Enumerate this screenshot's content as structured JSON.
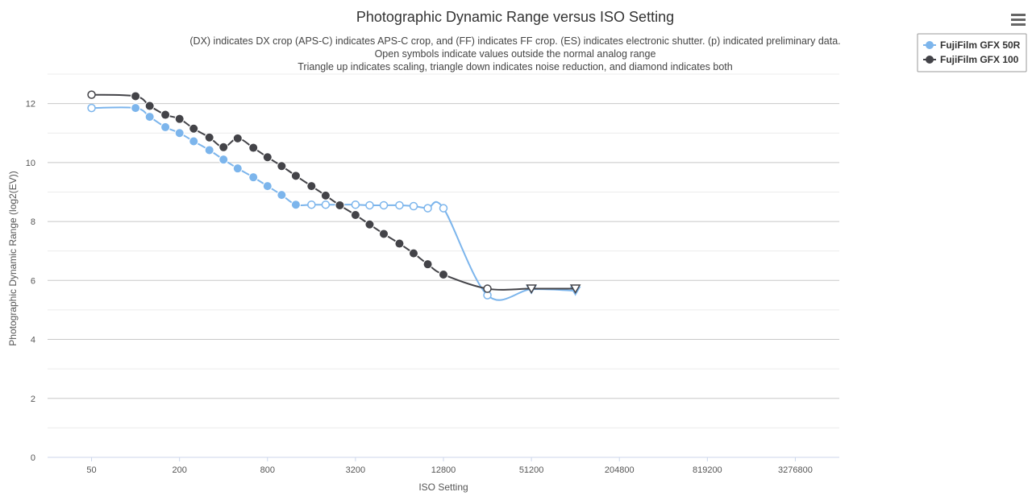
{
  "chart_data": {
    "type": "line",
    "title": "Photographic Dynamic Range versus ISO Setting",
    "subtitle": [
      "(DX) indicates DX crop (APS-C) indicates APS-C crop, and (FF) indicates FF crop. (ES) indicates electronic shutter. (p) indicated preliminary data.",
      "Open symbols indicate values outside the normal analog range",
      "Triangle up indicates scaling, triangle down indicates noise reduction, and diamond indicates both"
    ],
    "xlabel": "ISO Setting",
    "ylabel": "Photographic Dynamic Range (log2(EV))",
    "x_scale": "log2",
    "x_ticks": [
      50,
      200,
      800,
      3200,
      12800,
      51200,
      204800,
      819200,
      3276800
    ],
    "xlim": [
      25,
      6553600
    ],
    "y_ticks": [
      0,
      2,
      4,
      6,
      8,
      10,
      12
    ],
    "ylim": [
      0,
      13
    ],
    "grid": true,
    "legend_position": "top-right",
    "series": [
      {
        "name": "FujiFilm GFX 50R",
        "color": "#7cb5ec",
        "points": [
          {
            "x": 50,
            "y": 11.85,
            "marker": "open-circle"
          },
          {
            "x": 100,
            "y": 11.85,
            "marker": "circle"
          },
          {
            "x": 125,
            "y": 11.55,
            "marker": "circle"
          },
          {
            "x": 160,
            "y": 11.2,
            "marker": "circle"
          },
          {
            "x": 200,
            "y": 11.0,
            "marker": "circle"
          },
          {
            "x": 250,
            "y": 10.72,
            "marker": "circle"
          },
          {
            "x": 320,
            "y": 10.42,
            "marker": "circle"
          },
          {
            "x": 400,
            "y": 10.1,
            "marker": "circle"
          },
          {
            "x": 500,
            "y": 9.8,
            "marker": "circle"
          },
          {
            "x": 640,
            "y": 9.5,
            "marker": "circle"
          },
          {
            "x": 800,
            "y": 9.2,
            "marker": "circle"
          },
          {
            "x": 1000,
            "y": 8.9,
            "marker": "circle"
          },
          {
            "x": 1250,
            "y": 8.57,
            "marker": "circle"
          },
          {
            "x": 1600,
            "y": 8.57,
            "marker": "open-circle"
          },
          {
            "x": 2000,
            "y": 8.57,
            "marker": "open-circle"
          },
          {
            "x": 2500,
            "y": 8.57,
            "marker": "open-circle"
          },
          {
            "x": 3200,
            "y": 8.57,
            "marker": "open-circle"
          },
          {
            "x": 4000,
            "y": 8.55,
            "marker": "open-circle"
          },
          {
            "x": 5000,
            "y": 8.55,
            "marker": "open-circle"
          },
          {
            "x": 6400,
            "y": 8.55,
            "marker": "open-circle"
          },
          {
            "x": 8000,
            "y": 8.52,
            "marker": "open-circle"
          },
          {
            "x": 10000,
            "y": 8.45,
            "marker": "open-circle"
          },
          {
            "x": 12800,
            "y": 8.45,
            "marker": "open-circle"
          },
          {
            "x": 25600,
            "y": 5.5,
            "marker": "open-circle"
          },
          {
            "x": 51200,
            "y": 5.7,
            "marker": "open-triangle-down"
          },
          {
            "x": 102400,
            "y": 5.65,
            "marker": "open-triangle-down"
          }
        ]
      },
      {
        "name": "FujiFilm GFX 100",
        "color": "#434348",
        "points": [
          {
            "x": 50,
            "y": 12.3,
            "marker": "open-circle"
          },
          {
            "x": 100,
            "y": 12.25,
            "marker": "circle"
          },
          {
            "x": 125,
            "y": 11.92,
            "marker": "circle"
          },
          {
            "x": 160,
            "y": 11.62,
            "marker": "circle"
          },
          {
            "x": 200,
            "y": 11.48,
            "marker": "circle"
          },
          {
            "x": 250,
            "y": 11.15,
            "marker": "circle"
          },
          {
            "x": 320,
            "y": 10.85,
            "marker": "circle"
          },
          {
            "x": 400,
            "y": 10.52,
            "marker": "circle"
          },
          {
            "x": 500,
            "y": 10.82,
            "marker": "circle"
          },
          {
            "x": 640,
            "y": 10.5,
            "marker": "circle"
          },
          {
            "x": 800,
            "y": 10.18,
            "marker": "circle"
          },
          {
            "x": 1000,
            "y": 9.88,
            "marker": "circle"
          },
          {
            "x": 1250,
            "y": 9.55,
            "marker": "circle"
          },
          {
            "x": 1600,
            "y": 9.2,
            "marker": "circle"
          },
          {
            "x": 2000,
            "y": 8.88,
            "marker": "circle"
          },
          {
            "x": 2500,
            "y": 8.55,
            "marker": "circle"
          },
          {
            "x": 3200,
            "y": 8.22,
            "marker": "circle"
          },
          {
            "x": 4000,
            "y": 7.9,
            "marker": "circle"
          },
          {
            "x": 5000,
            "y": 7.58,
            "marker": "circle"
          },
          {
            "x": 6400,
            "y": 7.25,
            "marker": "circle"
          },
          {
            "x": 8000,
            "y": 6.92,
            "marker": "circle"
          },
          {
            "x": 10000,
            "y": 6.55,
            "marker": "circle"
          },
          {
            "x": 12800,
            "y": 6.2,
            "marker": "circle"
          },
          {
            "x": 25600,
            "y": 5.72,
            "marker": "open-circle"
          },
          {
            "x": 51200,
            "y": 5.72,
            "marker": "open-triangle-down"
          },
          {
            "x": 102400,
            "y": 5.72,
            "marker": "open-triangle-down"
          }
        ]
      }
    ]
  },
  "ui": {
    "menu_icon": "hamburger-menu-icon"
  }
}
